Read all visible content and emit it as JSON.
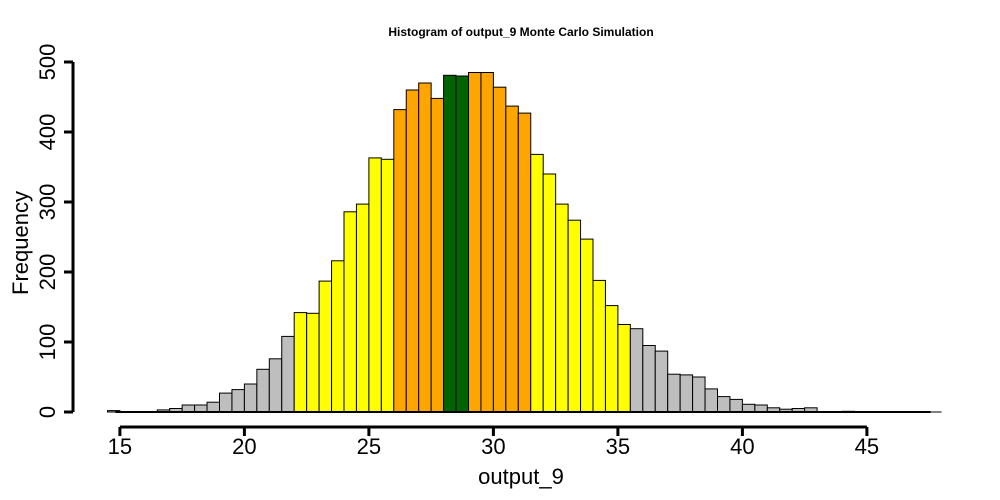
{
  "chart_data": {
    "type": "bar",
    "title": "Histogram of  output_9  Monte Carlo Simulation",
    "xlabel": "output_9",
    "ylabel": "Frequency",
    "xlim": [
      14.5,
      48
    ],
    "ylim": [
      0,
      500
    ],
    "x_ticks": [
      15,
      20,
      25,
      30,
      35,
      40,
      45
    ],
    "y_ticks": [
      0,
      100,
      200,
      300,
      400,
      500
    ],
    "bin_width": 0.5,
    "bin_start": 14.5,
    "colors": {
      "tail": "#BEBEBE",
      "outer": "#FFFF00",
      "inner": "#FFA500",
      "center": "#006400",
      "border": "#000000"
    },
    "bins": [
      {
        "x0": 14.5,
        "x1": 15.0,
        "count": 2,
        "band": "tail"
      },
      {
        "x0": 15.0,
        "x1": 15.5,
        "count": 0,
        "band": "tail"
      },
      {
        "x0": 15.5,
        "x1": 16.0,
        "count": 0,
        "band": "tail"
      },
      {
        "x0": 16.0,
        "x1": 16.5,
        "count": 0,
        "band": "tail"
      },
      {
        "x0": 16.5,
        "x1": 17.0,
        "count": 3,
        "band": "tail"
      },
      {
        "x0": 17.0,
        "x1": 17.5,
        "count": 5,
        "band": "tail"
      },
      {
        "x0": 17.5,
        "x1": 18.0,
        "count": 10,
        "band": "tail"
      },
      {
        "x0": 18.0,
        "x1": 18.5,
        "count": 10,
        "band": "tail"
      },
      {
        "x0": 18.5,
        "x1": 19.0,
        "count": 14,
        "band": "tail"
      },
      {
        "x0": 19.0,
        "x1": 19.5,
        "count": 27,
        "band": "tail"
      },
      {
        "x0": 19.5,
        "x1": 20.0,
        "count": 32,
        "band": "tail"
      },
      {
        "x0": 20.0,
        "x1": 20.5,
        "count": 40,
        "band": "tail"
      },
      {
        "x0": 20.5,
        "x1": 21.0,
        "count": 61,
        "band": "tail"
      },
      {
        "x0": 21.0,
        "x1": 21.5,
        "count": 76,
        "band": "tail"
      },
      {
        "x0": 21.5,
        "x1": 22.0,
        "count": 108,
        "band": "tail"
      },
      {
        "x0": 22.0,
        "x1": 22.5,
        "count": 142,
        "band": "outer"
      },
      {
        "x0": 22.5,
        "x1": 23.0,
        "count": 141,
        "band": "outer"
      },
      {
        "x0": 23.0,
        "x1": 23.5,
        "count": 187,
        "band": "outer"
      },
      {
        "x0": 23.5,
        "x1": 24.0,
        "count": 216,
        "band": "outer"
      },
      {
        "x0": 24.0,
        "x1": 24.5,
        "count": 286,
        "band": "outer"
      },
      {
        "x0": 24.5,
        "x1": 25.0,
        "count": 297,
        "band": "outer"
      },
      {
        "x0": 25.0,
        "x1": 25.5,
        "count": 363,
        "band": "outer"
      },
      {
        "x0": 25.5,
        "x1": 26.0,
        "count": 361,
        "band": "outer"
      },
      {
        "x0": 26.0,
        "x1": 26.5,
        "count": 432,
        "band": "inner"
      },
      {
        "x0": 26.5,
        "x1": 27.0,
        "count": 460,
        "band": "inner"
      },
      {
        "x0": 27.0,
        "x1": 27.5,
        "count": 470,
        "band": "inner"
      },
      {
        "x0": 27.5,
        "x1": 28.0,
        "count": 448,
        "band": "inner"
      },
      {
        "x0": 28.0,
        "x1": 28.5,
        "count": 481,
        "band": "center"
      },
      {
        "x0": 28.5,
        "x1": 29.0,
        "count": 480,
        "band": "center"
      },
      {
        "x0": 29.0,
        "x1": 29.5,
        "count": 485,
        "band": "inner"
      },
      {
        "x0": 29.5,
        "x1": 30.0,
        "count": 485,
        "band": "inner"
      },
      {
        "x0": 30.0,
        "x1": 30.5,
        "count": 464,
        "band": "inner"
      },
      {
        "x0": 30.5,
        "x1": 31.0,
        "count": 437,
        "band": "inner"
      },
      {
        "x0": 31.0,
        "x1": 31.5,
        "count": 427,
        "band": "inner"
      },
      {
        "x0": 31.5,
        "x1": 32.0,
        "count": 368,
        "band": "outer"
      },
      {
        "x0": 32.0,
        "x1": 32.5,
        "count": 340,
        "band": "outer"
      },
      {
        "x0": 32.5,
        "x1": 33.0,
        "count": 297,
        "band": "outer"
      },
      {
        "x0": 33.0,
        "x1": 33.5,
        "count": 274,
        "band": "outer"
      },
      {
        "x0": 33.5,
        "x1": 34.0,
        "count": 247,
        "band": "outer"
      },
      {
        "x0": 34.0,
        "x1": 34.5,
        "count": 188,
        "band": "outer"
      },
      {
        "x0": 34.5,
        "x1": 35.0,
        "count": 152,
        "band": "outer"
      },
      {
        "x0": 35.0,
        "x1": 35.5,
        "count": 125,
        "band": "outer"
      },
      {
        "x0": 35.5,
        "x1": 36.0,
        "count": 119,
        "band": "tail"
      },
      {
        "x0": 36.0,
        "x1": 36.5,
        "count": 95,
        "band": "tail"
      },
      {
        "x0": 36.5,
        "x1": 37.0,
        "count": 87,
        "band": "tail"
      },
      {
        "x0": 37.0,
        "x1": 37.5,
        "count": 54,
        "band": "tail"
      },
      {
        "x0": 37.5,
        "x1": 38.0,
        "count": 53,
        "band": "tail"
      },
      {
        "x0": 38.0,
        "x1": 38.5,
        "count": 50,
        "band": "tail"
      },
      {
        "x0": 38.5,
        "x1": 39.0,
        "count": 33,
        "band": "tail"
      },
      {
        "x0": 39.0,
        "x1": 39.5,
        "count": 22,
        "band": "tail"
      },
      {
        "x0": 39.5,
        "x1": 40.0,
        "count": 18,
        "band": "tail"
      },
      {
        "x0": 40.0,
        "x1": 40.5,
        "count": 11,
        "band": "tail"
      },
      {
        "x0": 40.5,
        "x1": 41.0,
        "count": 10,
        "band": "tail"
      },
      {
        "x0": 41.0,
        "x1": 41.5,
        "count": 6,
        "band": "tail"
      },
      {
        "x0": 41.5,
        "x1": 42.0,
        "count": 4,
        "band": "tail"
      },
      {
        "x0": 42.0,
        "x1": 42.5,
        "count": 5,
        "band": "tail"
      },
      {
        "x0": 42.5,
        "x1": 43.0,
        "count": 6,
        "band": "tail"
      },
      {
        "x0": 43.0,
        "x1": 43.5,
        "count": 0,
        "band": "tail"
      },
      {
        "x0": 43.5,
        "x1": 44.0,
        "count": 0,
        "band": "tail"
      },
      {
        "x0": 44.0,
        "x1": 44.5,
        "count": 1,
        "band": "tail"
      },
      {
        "x0": 44.5,
        "x1": 45.0,
        "count": 0,
        "band": "tail"
      },
      {
        "x0": 45.0,
        "x1": 45.5,
        "count": 0,
        "band": "tail"
      },
      {
        "x0": 45.5,
        "x1": 46.0,
        "count": 0,
        "band": "tail"
      },
      {
        "x0": 46.0,
        "x1": 46.5,
        "count": 0,
        "band": "tail"
      },
      {
        "x0": 46.5,
        "x1": 47.0,
        "count": 0,
        "band": "tail"
      },
      {
        "x0": 47.0,
        "x1": 47.5,
        "count": 0,
        "band": "tail"
      },
      {
        "x0": 47.5,
        "x1": 48.0,
        "count": 0,
        "band": "tail"
      }
    ]
  }
}
